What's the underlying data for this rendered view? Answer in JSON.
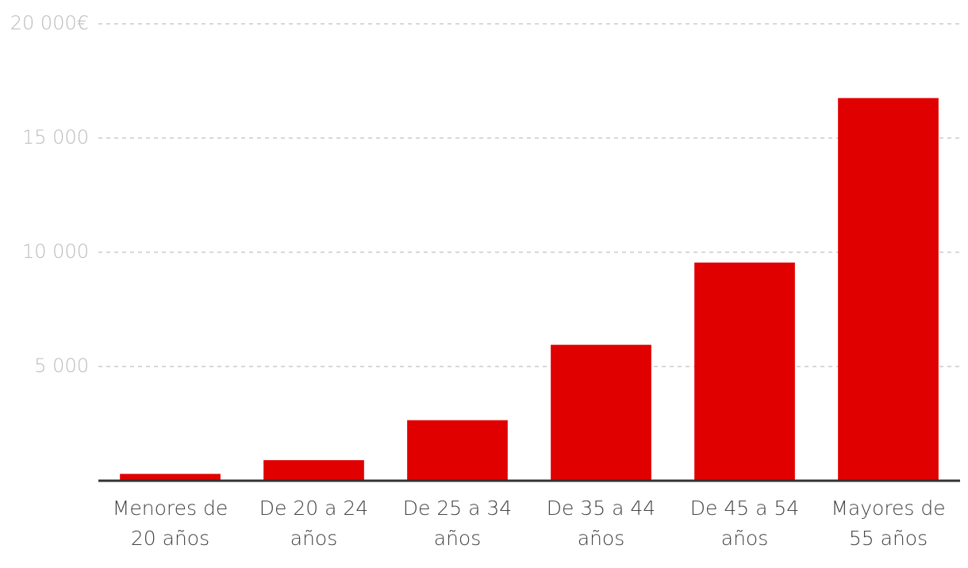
{
  "chart_data": {
    "type": "bar",
    "categories": [
      [
        "Menores de",
        "20 años"
      ],
      [
        "De 20 a 24",
        "años"
      ],
      [
        "De 25 a 34",
        "años"
      ],
      [
        "De 35 a 44",
        "años"
      ],
      [
        "De 45 a 54",
        "años"
      ],
      [
        "Mayores de",
        "55 años"
      ]
    ],
    "values": [
      300,
      900,
      2650,
      5950,
      9550,
      16750
    ],
    "color": "#e00000",
    "ylim": [
      0,
      20000
    ],
    "yticks": [
      {
        "value": 5000,
        "label": "5 000"
      },
      {
        "value": 10000,
        "label": "10 000"
      },
      {
        "value": 15000,
        "label": "15 000"
      },
      {
        "value": 20000,
        "label": "20 000€"
      }
    ],
    "grid": true
  }
}
